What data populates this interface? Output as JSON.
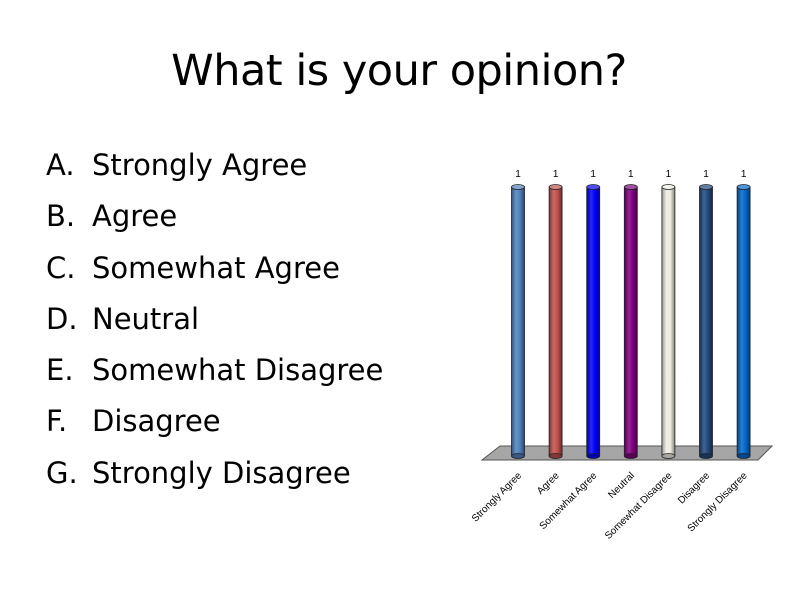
{
  "slide": {
    "title": "What is your opinion?"
  },
  "options": [
    {
      "letter": "A.",
      "label": "Strongly Agree"
    },
    {
      "letter": "B.",
      "label": "Agree"
    },
    {
      "letter": "C.",
      "label": "Somewhat Agree"
    },
    {
      "letter": "D.",
      "label": "Neutral"
    },
    {
      "letter": "E.",
      "label": "Somewhat Disagree"
    },
    {
      "letter": "F.",
      "label": "Disagree"
    },
    {
      "letter": "G.",
      "label": "Strongly Disagree"
    }
  ],
  "chart_data": {
    "type": "bar",
    "categories": [
      "Strongly Agree",
      "Agree",
      "Somewhat Agree",
      "Neutral",
      "Somewhat Disagree",
      "Disagree",
      "Strongly Disagree"
    ],
    "values": [
      1,
      1,
      1,
      1,
      1,
      1,
      1
    ],
    "data_labels": [
      "1",
      "1",
      "1",
      "1",
      "1",
      "1",
      "1"
    ],
    "colors": [
      "#4f81bd",
      "#c0504d",
      "#0000ff",
      "#7f007f",
      "#eeece1",
      "#1f497d",
      "#0066cc"
    ],
    "floor_color": "#a6a6a6",
    "ylim": [
      0,
      1
    ],
    "grid": false,
    "legend": false
  }
}
